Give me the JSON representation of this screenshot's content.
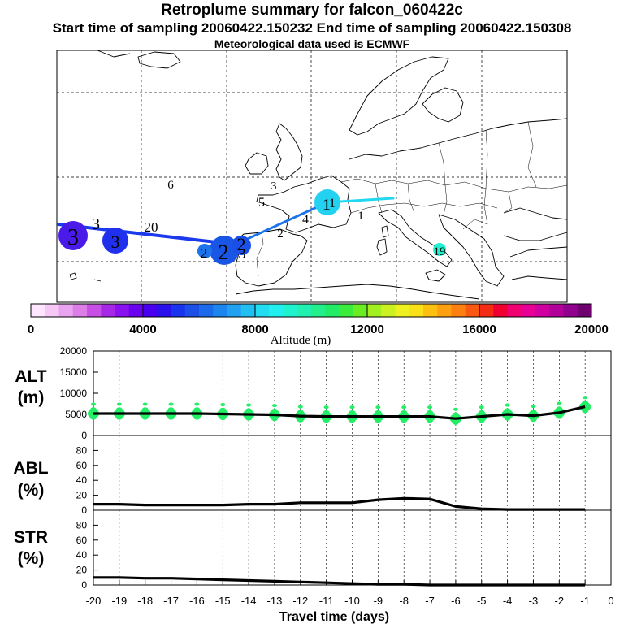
{
  "header": {
    "title": "Retroplume summary for falcon_060422c",
    "sampling": "Start time of sampling 20060422.150232     End time of sampling 20060422.150308",
    "met": "Meteorological data used is ECMWF"
  },
  "colors": {
    "track_dark": "#1a3aeb",
    "track_mid": "#1d74ea",
    "track_light": "#22d8f0",
    "ensemble_green": "#22ee66",
    "colorbar": [
      "#ffe6ff",
      "#f5c8f5",
      "#eaa3ee",
      "#dd7ee8",
      "#c84fe6",
      "#a628e6",
      "#8a10f0",
      "#6a00f0",
      "#4a00f0",
      "#2a10ea",
      "#1834ee",
      "#1c4ee8",
      "#1a6aea",
      "#1c86ee",
      "#20a2f0",
      "#22bff2",
      "#22dcf2",
      "#22f0ee",
      "#20f2d0",
      "#22f0b0",
      "#22ee8c",
      "#22ec66",
      "#3aec3c",
      "#6aee22",
      "#a2f020",
      "#ccf020",
      "#eef020",
      "#fae016",
      "#fcc010",
      "#fca010",
      "#fc8010",
      "#f85810",
      "#f42c14",
      "#f00030",
      "#f00070",
      "#e80096",
      "#d000a0",
      "#b2009a",
      "#920090",
      "#700070"
    ]
  },
  "map": {
    "track_labels": [
      {
        "text": "3",
        "lon_idx": 0
      },
      {
        "text": "3",
        "lon_idx": 1
      },
      {
        "text": "3",
        "lon_idx": 2
      },
      {
        "text": "20",
        "lon_idx": 3
      },
      {
        "text": "2",
        "lon_idx": 4
      },
      {
        "text": "2",
        "lon_idx": 5
      },
      {
        "text": "2",
        "lon_idx": 6
      },
      {
        "text": "3",
        "lon_idx": 7
      },
      {
        "text": "2",
        "lon_idx": 8
      },
      {
        "text": "4",
        "lon_idx": 9
      },
      {
        "text": "5",
        "lon_idx": 10
      },
      {
        "text": "6",
        "lon_idx": 11
      },
      {
        "text": "1",
        "lon_idx": 12
      },
      {
        "text": "1",
        "lon_idx": 13
      },
      {
        "text": "1",
        "lon_idx": 14
      },
      {
        "text": "19",
        "lon_idx": 15
      },
      {
        "text": "3",
        "lon_idx": 16
      }
    ]
  },
  "chart_data": [
    {
      "type": "colorbar",
      "xlabel": "Altitude (m)",
      "range": [
        0,
        20000
      ],
      "tick_labels": [
        "0",
        "4000",
        "8000",
        "12000",
        "16000",
        "20000"
      ]
    },
    {
      "type": "line",
      "panel": "ALT",
      "ylabel": "ALT\n(m)",
      "ylabel_lines": [
        "ALT",
        "(m)"
      ],
      "ylim": [
        0,
        20000
      ],
      "yticks": [
        "0",
        "5000",
        "10000",
        "15000",
        "20000"
      ],
      "x": [
        -20,
        -19,
        -18,
        -17,
        -16,
        -15,
        -14,
        -13,
        -12,
        -11,
        -10,
        -9,
        -8,
        -7,
        -6,
        -5,
        -4,
        -3,
        -2,
        -1
      ],
      "y": [
        5200,
        5200,
        5200,
        5200,
        5200,
        5100,
        5000,
        4900,
        4600,
        4500,
        4500,
        4500,
        4500,
        4500,
        4000,
        4500,
        5000,
        4700,
        5400,
        6800
      ]
    },
    {
      "type": "line",
      "panel": "ABL",
      "ylabel_lines": [
        "ABL",
        "(%)"
      ],
      "ylim": [
        0,
        100
      ],
      "yticks": [
        "0",
        "20",
        "40",
        "60",
        "80"
      ],
      "x": [
        -20,
        -19,
        -18,
        -17,
        -16,
        -15,
        -14,
        -13,
        -12,
        -11,
        -10,
        -9,
        -8,
        -7,
        -6,
        -5,
        -4,
        -3,
        -2,
        -1
      ],
      "y": [
        8,
        8,
        7,
        7,
        7,
        7,
        8,
        8,
        10,
        10,
        10,
        14,
        16,
        15,
        5,
        2,
        1,
        1,
        1,
        1
      ]
    },
    {
      "type": "line",
      "panel": "STR",
      "ylabel_lines": [
        "STR",
        "(%)"
      ],
      "ylim": [
        0,
        100
      ],
      "yticks": [
        "0",
        "20",
        "40",
        "60",
        "80"
      ],
      "x": [
        -20,
        -19,
        -18,
        -17,
        -16,
        -15,
        -14,
        -13,
        -12,
        -11,
        -10,
        -9,
        -8,
        -7,
        -6,
        -5,
        -4,
        -3,
        -2,
        -1
      ],
      "y": [
        10,
        10,
        9,
        9,
        8,
        7,
        6,
        5,
        4,
        3,
        2,
        1,
        1,
        0,
        0,
        0,
        0,
        0,
        0,
        0
      ],
      "xlabel": "Travel time (days)",
      "xlim": [
        -20,
        0
      ],
      "xticks": [
        "-20",
        "-19",
        "-18",
        "-17",
        "-16",
        "-15",
        "-14",
        "-13",
        "-12",
        "-11",
        "-10",
        "-9",
        "-8",
        "-7",
        "-6",
        "-5",
        "-4",
        "-3",
        "-2",
        "-1",
        "0"
      ]
    }
  ]
}
